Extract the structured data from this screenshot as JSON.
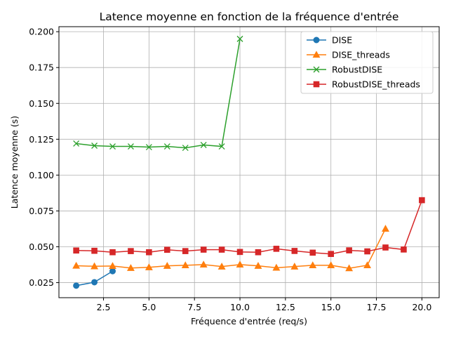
{
  "chart_data": {
    "type": "line",
    "title": "Latence moyenne en fonction de la fréquence d'entrée",
    "xlabel": "Fréquence d'entrée (req/s)",
    "ylabel": "Latence moyenne (s)",
    "xlim": [
      0.05,
      20.95
    ],
    "ylim": [
      0.0145,
      0.2035
    ],
    "xticks": [
      2.5,
      5.0,
      7.5,
      10.0,
      12.5,
      15.0,
      17.5,
      20.0
    ],
    "xtick_labels": [
      "2.5",
      "5.0",
      "7.5",
      "10.0",
      "12.5",
      "15.0",
      "17.5",
      "20.0"
    ],
    "yticks": [
      0.025,
      0.05,
      0.075,
      0.1,
      0.125,
      0.15,
      0.175,
      0.2
    ],
    "ytick_labels": [
      "0.025",
      "0.050",
      "0.075",
      "0.100",
      "0.125",
      "0.150",
      "0.175",
      "0.200"
    ],
    "grid": true,
    "legend_position": "top-right",
    "series": [
      {
        "name": "DISE",
        "color": "#1f77b4",
        "marker": "circle",
        "x": [
          1,
          2,
          3
        ],
        "y": [
          0.0229,
          0.0253,
          0.033
        ]
      },
      {
        "name": "DISE_threads",
        "color": "#ff7f0e",
        "marker": "triangle",
        "x": [
          1,
          2,
          3,
          4,
          5,
          6,
          7,
          8,
          9,
          10,
          11,
          12,
          13,
          14,
          15,
          16,
          17,
          18
        ],
        "y": [
          0.0368,
          0.0364,
          0.0366,
          0.0352,
          0.0357,
          0.0367,
          0.0371,
          0.0376,
          0.0362,
          0.0376,
          0.0367,
          0.0354,
          0.0362,
          0.0371,
          0.0371,
          0.035,
          0.0371,
          0.0626
        ]
      },
      {
        "name": "RobustDISE",
        "color": "#2ca02c",
        "marker": "x",
        "x": [
          1,
          2,
          3,
          4,
          5,
          6,
          7,
          8,
          9,
          10
        ],
        "y": [
          0.122,
          0.1205,
          0.12,
          0.12,
          0.1195,
          0.12,
          0.119,
          0.121,
          0.12,
          0.195
        ]
      },
      {
        "name": "RobustDISE_threads",
        "color": "#d62728",
        "marker": "square",
        "x": [
          1,
          2,
          3,
          4,
          5,
          6,
          7,
          8,
          9,
          10,
          11,
          12,
          13,
          14,
          15,
          16,
          17,
          18,
          19,
          20
        ],
        "y": [
          0.0474,
          0.0472,
          0.0462,
          0.047,
          0.0462,
          0.0479,
          0.047,
          0.048,
          0.048,
          0.0464,
          0.0462,
          0.0486,
          0.0471,
          0.0459,
          0.045,
          0.0475,
          0.0468,
          0.0495,
          0.0481,
          0.0825
        ]
      }
    ]
  }
}
